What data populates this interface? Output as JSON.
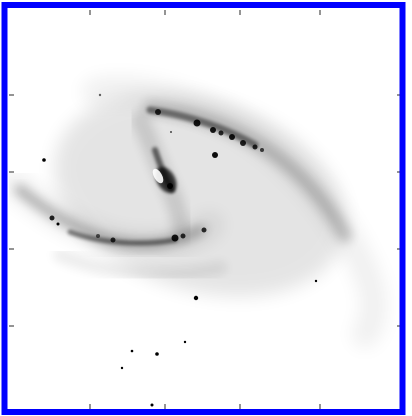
{
  "image": {
    "subject": "barred-spiral-galaxy",
    "render": "inverted-grayscale",
    "background_color": "#ffffff",
    "ink_color": "#000000",
    "frame_color": "#0000ff"
  }
}
